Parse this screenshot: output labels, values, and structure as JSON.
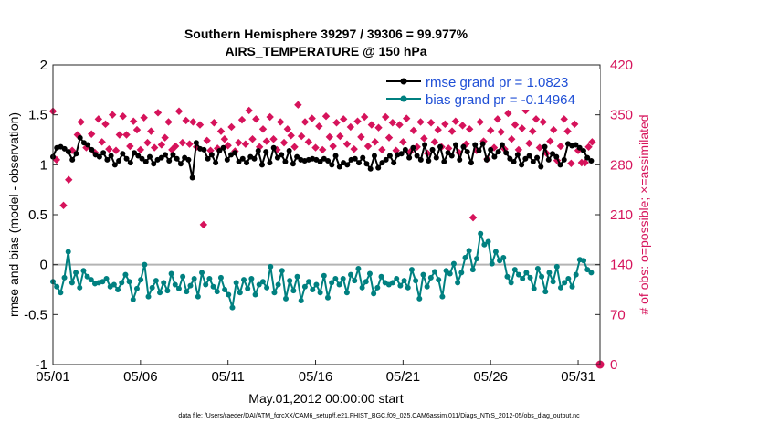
{
  "chart_data": {
    "type": "line",
    "title_lines": [
      "Southern Hemisphere 39297 / 39306 = 99.977%",
      "AIRS_TEMPERATURE @ 150 hPa"
    ],
    "xlabel": "May.01,2012 00:00:00 start",
    "ylabel": "rmse and bias (model - observation)",
    "y2label": "# of obs: o=possible; ×=assimilated",
    "footnote": "data file: /Users/raeder/DAI/ATM_forcXX/CAM6_setup/f.e21.FHIST_BGC.f09_025.CAM6assim.011/Diags_NTrS_2012-05/obs_diag_output.nc",
    "xlim": [
      0,
      31.25
    ],
    "x_ticks": [
      {
        "x": 0,
        "label": "05/01"
      },
      {
        "x": 5,
        "label": "05/06"
      },
      {
        "x": 10,
        "label": "05/11"
      },
      {
        "x": 15,
        "label": "05/16"
      },
      {
        "x": 20,
        "label": "05/21"
      },
      {
        "x": 25,
        "label": "05/26"
      },
      {
        "x": 30,
        "label": "05/31"
      }
    ],
    "ylim": [
      -1,
      2
    ],
    "y_ticks": [
      "-1",
      "-0.5",
      "0",
      "0.5",
      "1",
      "1.5",
      "2"
    ],
    "y2lim": [
      0,
      420
    ],
    "y2_ticks": [
      "0",
      "70",
      "140",
      "210",
      "280",
      "350",
      "420"
    ],
    "zero_line": 0,
    "legend_position": "top-right",
    "legend": [
      "rmse grand pr = 1.0823",
      "bias grand pr = -0.14964"
    ],
    "colors": {
      "rmse": "#000000",
      "bias": "#008080",
      "obs": "#d6135b",
      "zero": "#b4b4b4",
      "legend_text": "#1f4fd6"
    },
    "rmse": [
      1.08,
      1.17,
      1.18,
      1.16,
      1.13,
      1.05,
      1.11,
      1.27,
      1.22,
      1.2,
      1.15,
      1.1,
      1.08,
      1.12,
      1.05,
      1.09,
      1.0,
      1.04,
      1.11,
      1.06,
      1.02,
      1.12,
      1.09,
      1.06,
      1.03,
      1.08,
      1.01,
      1.05,
      1.07,
      1.1,
      1.04,
      1.1,
      1.06,
      1.01,
      1.07,
      1.05,
      0.87,
      1.22,
      1.16,
      1.15,
      1.06,
      1.1,
      1.02,
      1.14,
      1.17,
      1.05,
      1.1,
      1.12,
      1.03,
      1.06,
      1.02,
      1.08,
      1.06,
      1.14,
      1.0,
      1.13,
      1.02,
      1.17,
      1.07,
      1.1,
      1.03,
      1.14,
      1.01,
      1.08,
      1.05,
      1.04,
      1.05,
      1.06,
      1.05,
      1.03,
      1.06,
      1.04,
      1.0,
      1.09,
      0.98,
      1.02,
      1.0,
      1.05,
      1.06,
      1.02,
      1.07,
      1.01,
      0.96,
      1.09,
      0.97,
      1.02,
      1.05,
      1.09,
      1.02,
      1.1,
      1.11,
      1.15,
      1.07,
      1.17,
      1.09,
      1.05,
      1.2,
      1.04,
      1.15,
      1.07,
      1.18,
      1.03,
      1.12,
      1.09,
      1.2,
      1.05,
      1.18,
      1.13,
      1.02,
      1.2,
      1.14,
      1.21,
      1.05,
      1.15,
      1.08,
      1.13,
      1.2,
      1.12,
      1.06,
      1.03,
      1.1,
      1.0,
      1.06,
      1.09,
      1.03,
      1.07,
      0.98,
      1.18,
      1.05,
      1.11,
      1.08,
      1.0,
      1.05,
      1.21,
      1.19,
      1.2,
      1.17,
      1.14,
      1.07,
      1.04
    ],
    "bias": [
      -0.17,
      -0.22,
      -0.28,
      -0.13,
      0.13,
      -0.18,
      -0.08,
      -0.23,
      -0.06,
      -0.12,
      -0.15,
      -0.19,
      -0.18,
      -0.17,
      -0.14,
      -0.22,
      -0.2,
      -0.25,
      -0.18,
      -0.1,
      -0.17,
      -0.35,
      -0.24,
      -0.15,
      0.0,
      -0.32,
      -0.23,
      -0.16,
      -0.28,
      -0.18,
      -0.26,
      -0.09,
      -0.2,
      -0.24,
      -0.12,
      -0.27,
      -0.21,
      -0.14,
      -0.32,
      -0.08,
      -0.2,
      -0.14,
      -0.22,
      -0.27,
      -0.13,
      -0.25,
      -0.3,
      -0.43,
      -0.18,
      -0.28,
      -0.15,
      -0.24,
      -0.14,
      -0.3,
      -0.2,
      -0.17,
      -0.23,
      -0.02,
      -0.28,
      -0.2,
      -0.06,
      -0.34,
      -0.16,
      -0.26,
      -0.12,
      -0.36,
      -0.22,
      -0.17,
      -0.25,
      -0.2,
      -0.28,
      -0.11,
      -0.33,
      -0.18,
      -0.14,
      -0.2,
      -0.14,
      -0.28,
      -0.1,
      -0.16,
      -0.04,
      -0.23,
      -0.17,
      -0.09,
      -0.29,
      -0.23,
      -0.12,
      -0.18,
      -0.2,
      -0.18,
      -0.14,
      -0.21,
      -0.16,
      -0.23,
      -0.05,
      -0.16,
      -0.34,
      -0.1,
      -0.22,
      -0.13,
      -0.07,
      -0.15,
      -0.32,
      -0.06,
      -0.09,
      0.01,
      -0.18,
      -0.08,
      0.07,
      0.14,
      -0.05,
      0.06,
      0.31,
      0.2,
      0.23,
      0.01,
      0.13,
      0.04,
      0.07,
      -0.12,
      -0.18,
      -0.05,
      -0.1,
      -0.14,
      -0.08,
      -0.13,
      -0.24,
      -0.04,
      -0.12,
      -0.27,
      -0.08,
      -0.17,
      -0.02,
      -0.23,
      -0.18,
      -0.14,
      -0.22,
      -0.1,
      0.05,
      0.04,
      -0.05,
      -0.08
    ],
    "obs_assimilated": [
      [
        0,
        355
      ],
      [
        0.2,
        287
      ],
      [
        0.6,
        223
      ],
      [
        0.9,
        259
      ],
      [
        1.1,
        300
      ],
      [
        1.4,
        322
      ],
      [
        1.6,
        340
      ],
      [
        1.9,
        304
      ],
      [
        2.2,
        323
      ],
      [
        2.4,
        297
      ],
      [
        2.6,
        344
      ],
      [
        2.8,
        312
      ],
      [
        3.0,
        337
      ],
      [
        3.2,
        302
      ],
      [
        3.4,
        350
      ],
      [
        3.6,
        300
      ],
      [
        3.8,
        322
      ],
      [
        4.0,
        348
      ],
      [
        4.2,
        322
      ],
      [
        4.4,
        306
      ],
      [
        4.6,
        341
      ],
      [
        4.8,
        329
      ],
      [
        5.0,
        301
      ],
      [
        5.2,
        346
      ],
      [
        5.4,
        311
      ],
      [
        5.6,
        327
      ],
      [
        5.8,
        304
      ],
      [
        6.0,
        353
      ],
      [
        6.2,
        308
      ],
      [
        6.4,
        318
      ],
      [
        6.6,
        340
      ],
      [
        6.8,
        301
      ],
      [
        7.0,
        306
      ],
      [
        7.2,
        355
      ],
      [
        7.4,
        311
      ],
      [
        7.6,
        342
      ],
      [
        7.8,
        309
      ],
      [
        8.0,
        340
      ],
      [
        8.2,
        305
      ],
      [
        8.4,
        336
      ],
      [
        8.6,
        196
      ],
      [
        8.8,
        314
      ],
      [
        9.0,
        300
      ],
      [
        9.2,
        339
      ],
      [
        9.4,
        303
      ],
      [
        9.6,
        327
      ],
      [
        9.8,
        316
      ],
      [
        10.0,
        307
      ],
      [
        10.2,
        333
      ],
      [
        10.4,
        299
      ],
      [
        10.6,
        311
      ],
      [
        10.8,
        343
      ],
      [
        11.0,
        309
      ],
      [
        11.2,
        356
      ],
      [
        11.4,
        316
      ],
      [
        11.6,
        344
      ],
      [
        11.8,
        305
      ],
      [
        12.0,
        330
      ],
      [
        12.2,
        313
      ],
      [
        12.4,
        347
      ],
      [
        12.6,
        316
      ],
      [
        12.8,
        301
      ],
      [
        13.0,
        340
      ],
      [
        13.2,
        311
      ],
      [
        13.4,
        330
      ],
      [
        13.6,
        321
      ],
      [
        13.8,
        305
      ],
      [
        14.0,
        364
      ],
      [
        14.2,
        320
      ],
      [
        14.4,
        340
      ],
      [
        14.6,
        312
      ],
      [
        14.8,
        345
      ],
      [
        15.0,
        304
      ],
      [
        15.2,
        334
      ],
      [
        15.4,
        301
      ],
      [
        15.6,
        348
      ],
      [
        15.8,
        319
      ],
      [
        16.0,
        306
      ],
      [
        16.2,
        339
      ],
      [
        16.4,
        320
      ],
      [
        16.6,
        344
      ],
      [
        16.8,
        309
      ],
      [
        17.0,
        333
      ],
      [
        17.2,
        302
      ],
      [
        17.4,
        341
      ],
      [
        17.6,
        319
      ],
      [
        17.8,
        347
      ],
      [
        18.0,
        306
      ],
      [
        18.2,
        336
      ],
      [
        18.4,
        312
      ],
      [
        18.6,
        332
      ],
      [
        18.8,
        301
      ],
      [
        19.0,
        347
      ],
      [
        19.2,
        318
      ],
      [
        19.4,
        339
      ],
      [
        19.6,
        300
      ],
      [
        19.8,
        336
      ],
      [
        20.0,
        312
      ],
      [
        20.2,
        345
      ],
      [
        20.4,
        298
      ],
      [
        20.6,
        328
      ],
      [
        20.8,
        305
      ],
      [
        21.0,
        340
      ],
      [
        21.2,
        317
      ],
      [
        21.4,
        296
      ],
      [
        21.6,
        339
      ],
      [
        21.8,
        312
      ],
      [
        22.0,
        329
      ],
      [
        22.2,
        305
      ],
      [
        22.4,
        337
      ],
      [
        22.6,
        303
      ],
      [
        22.8,
        327
      ],
      [
        23.0,
        341
      ],
      [
        23.2,
        297
      ],
      [
        23.4,
        335
      ],
      [
        23.6,
        309
      ],
      [
        23.8,
        330
      ],
      [
        24.0,
        206
      ],
      [
        24.2,
        300
      ],
      [
        24.4,
        340
      ],
      [
        24.6,
        313
      ],
      [
        24.8,
        288
      ],
      [
        25.0,
        328
      ],
      [
        25.2,
        304
      ],
      [
        25.4,
        344
      ],
      [
        25.6,
        326
      ],
      [
        25.8,
        302
      ],
      [
        26.0,
        352
      ],
      [
        26.2,
        316
      ],
      [
        26.4,
        336
      ],
      [
        26.6,
        301
      ],
      [
        26.8,
        331
      ],
      [
        27.0,
        356
      ],
      [
        27.2,
        310
      ],
      [
        27.4,
        327
      ],
      [
        27.6,
        344
      ],
      [
        27.8,
        304
      ],
      [
        28.0,
        340
      ],
      [
        28.2,
        296
      ],
      [
        28.4,
        313
      ],
      [
        28.6,
        329
      ],
      [
        28.8,
        286
      ],
      [
        29.0,
        306
      ],
      [
        29.2,
        344
      ],
      [
        29.4,
        327
      ],
      [
        29.6,
        282
      ],
      [
        29.8,
        337
      ],
      [
        30.0,
        300
      ],
      [
        30.2,
        283
      ],
      [
        30.4,
        283
      ],
      [
        30.6,
        305
      ],
      [
        30.8,
        312
      ]
    ]
  }
}
